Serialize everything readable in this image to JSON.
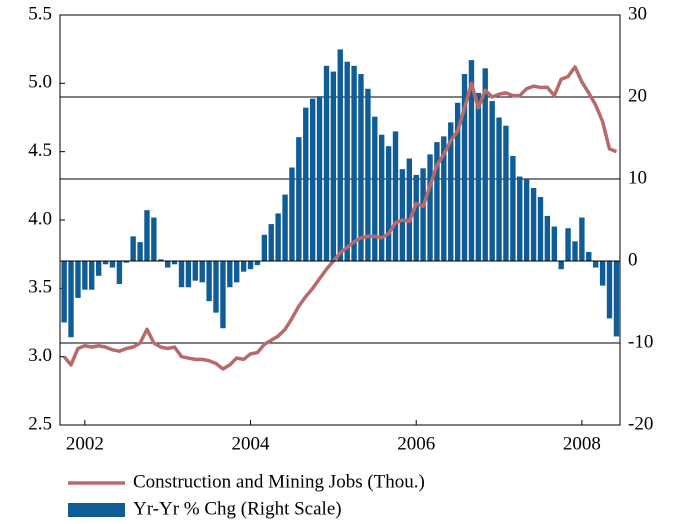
{
  "chart_data": {
    "type": "combo",
    "x": [
      2001.75,
      2001.833,
      2001.917,
      2002.0,
      2002.083,
      2002.167,
      2002.25,
      2002.333,
      2002.417,
      2002.5,
      2002.583,
      2002.667,
      2002.75,
      2002.833,
      2002.917,
      2003.0,
      2003.083,
      2003.167,
      2003.25,
      2003.333,
      2003.417,
      2003.5,
      2003.583,
      2003.667,
      2003.75,
      2003.833,
      2003.917,
      2004.0,
      2004.083,
      2004.167,
      2004.25,
      2004.333,
      2004.417,
      2004.5,
      2004.583,
      2004.667,
      2004.75,
      2004.833,
      2004.917,
      2005.0,
      2005.083,
      2005.167,
      2005.25,
      2005.333,
      2005.417,
      2005.5,
      2005.583,
      2005.667,
      2005.75,
      2005.833,
      2005.917,
      2006.0,
      2006.083,
      2006.167,
      2006.25,
      2006.333,
      2006.417,
      2006.5,
      2006.583,
      2006.667,
      2006.75,
      2006.833,
      2006.917,
      2007.0,
      2007.083,
      2007.167,
      2007.25,
      2007.333,
      2007.417,
      2007.5,
      2007.583,
      2007.667,
      2007.75,
      2007.833,
      2007.917,
      2008.0,
      2008.083,
      2008.167,
      2008.25,
      2008.333,
      2008.417
    ],
    "series": [
      {
        "name": "Construction and Mining Jobs (Thou.)",
        "type": "line",
        "color": "#b86a6a",
        "values": [
          3.0,
          2.94,
          3.06,
          3.08,
          3.07,
          3.08,
          3.07,
          3.05,
          3.04,
          3.06,
          3.07,
          3.1,
          3.2,
          3.1,
          3.07,
          3.06,
          3.07,
          3.0,
          2.99,
          2.98,
          2.98,
          2.97,
          2.95,
          2.91,
          2.94,
          2.99,
          2.98,
          3.02,
          3.03,
          3.09,
          3.12,
          3.15,
          3.2,
          3.28,
          3.37,
          3.44,
          3.5,
          3.57,
          3.64,
          3.7,
          3.76,
          3.8,
          3.84,
          3.87,
          3.88,
          3.88,
          3.87,
          3.9,
          3.98,
          4.0,
          3.99,
          4.12,
          4.1,
          4.25,
          4.4,
          4.48,
          4.58,
          4.65,
          4.82,
          5.0,
          4.82,
          4.95,
          4.9,
          4.92,
          4.93,
          4.91,
          4.91,
          4.96,
          4.98,
          4.97,
          4.97,
          4.91,
          5.03,
          5.05,
          5.12,
          5.01,
          4.93,
          4.84,
          4.72,
          4.52,
          4.5
        ]
      },
      {
        "name": "Yr-Yr % Chg (Right Scale)",
        "type": "bar",
        "axis": "y2",
        "color": "#0f5c97",
        "values": [
          -7.5,
          -9.3,
          -4.5,
          -3.5,
          -3.5,
          -1.8,
          -0.4,
          -0.8,
          -2.8,
          -0.2,
          3,
          2.3,
          6.2,
          5.3,
          0.2,
          -0.8,
          -0.4,
          -3.2,
          -3.2,
          -2.4,
          -2.6,
          -4.9,
          -6.3,
          -8.2,
          -3.2,
          -2.6,
          -1.3,
          -1,
          -0.5,
          3.2,
          4.5,
          5.8,
          8.1,
          11.4,
          15.1,
          18.7,
          19.8,
          20.1,
          23.8,
          23.1,
          25.8,
          24.3,
          23.8,
          22.8,
          21.0,
          17.6,
          15.4,
          14.0,
          15.8,
          11.2,
          12.5,
          10.5,
          11.3,
          13,
          14.5,
          15.2,
          16.9,
          19.3,
          22.8,
          24.5,
          20.5,
          23.5,
          19.5,
          17.5,
          16.5,
          12.8,
          10.3,
          10,
          8.9,
          7.8,
          5.5,
          4.2,
          -1,
          4,
          2.4,
          5.3,
          1.1,
          -0.8,
          -3,
          -7,
          -9.2
        ]
      }
    ],
    "xlim": [
      2001.7,
      2008.46
    ],
    "xticks": [
      2002,
      2004,
      2006,
      2008
    ],
    "ylim": [
      2.5,
      5.5
    ],
    "yticks": [
      2.5,
      {
        "value": 3,
        "label": "3.0"
      },
      3.5,
      {
        "value": 4,
        "label": "4.0"
      },
      4.5,
      {
        "value": 5,
        "label": "5.0"
      },
      5.5
    ],
    "y2lim": [
      -20,
      30
    ],
    "y2ticks": [
      -20,
      -10,
      0,
      10,
      20,
      30
    ],
    "grid": true,
    "legend": "bottom"
  }
}
